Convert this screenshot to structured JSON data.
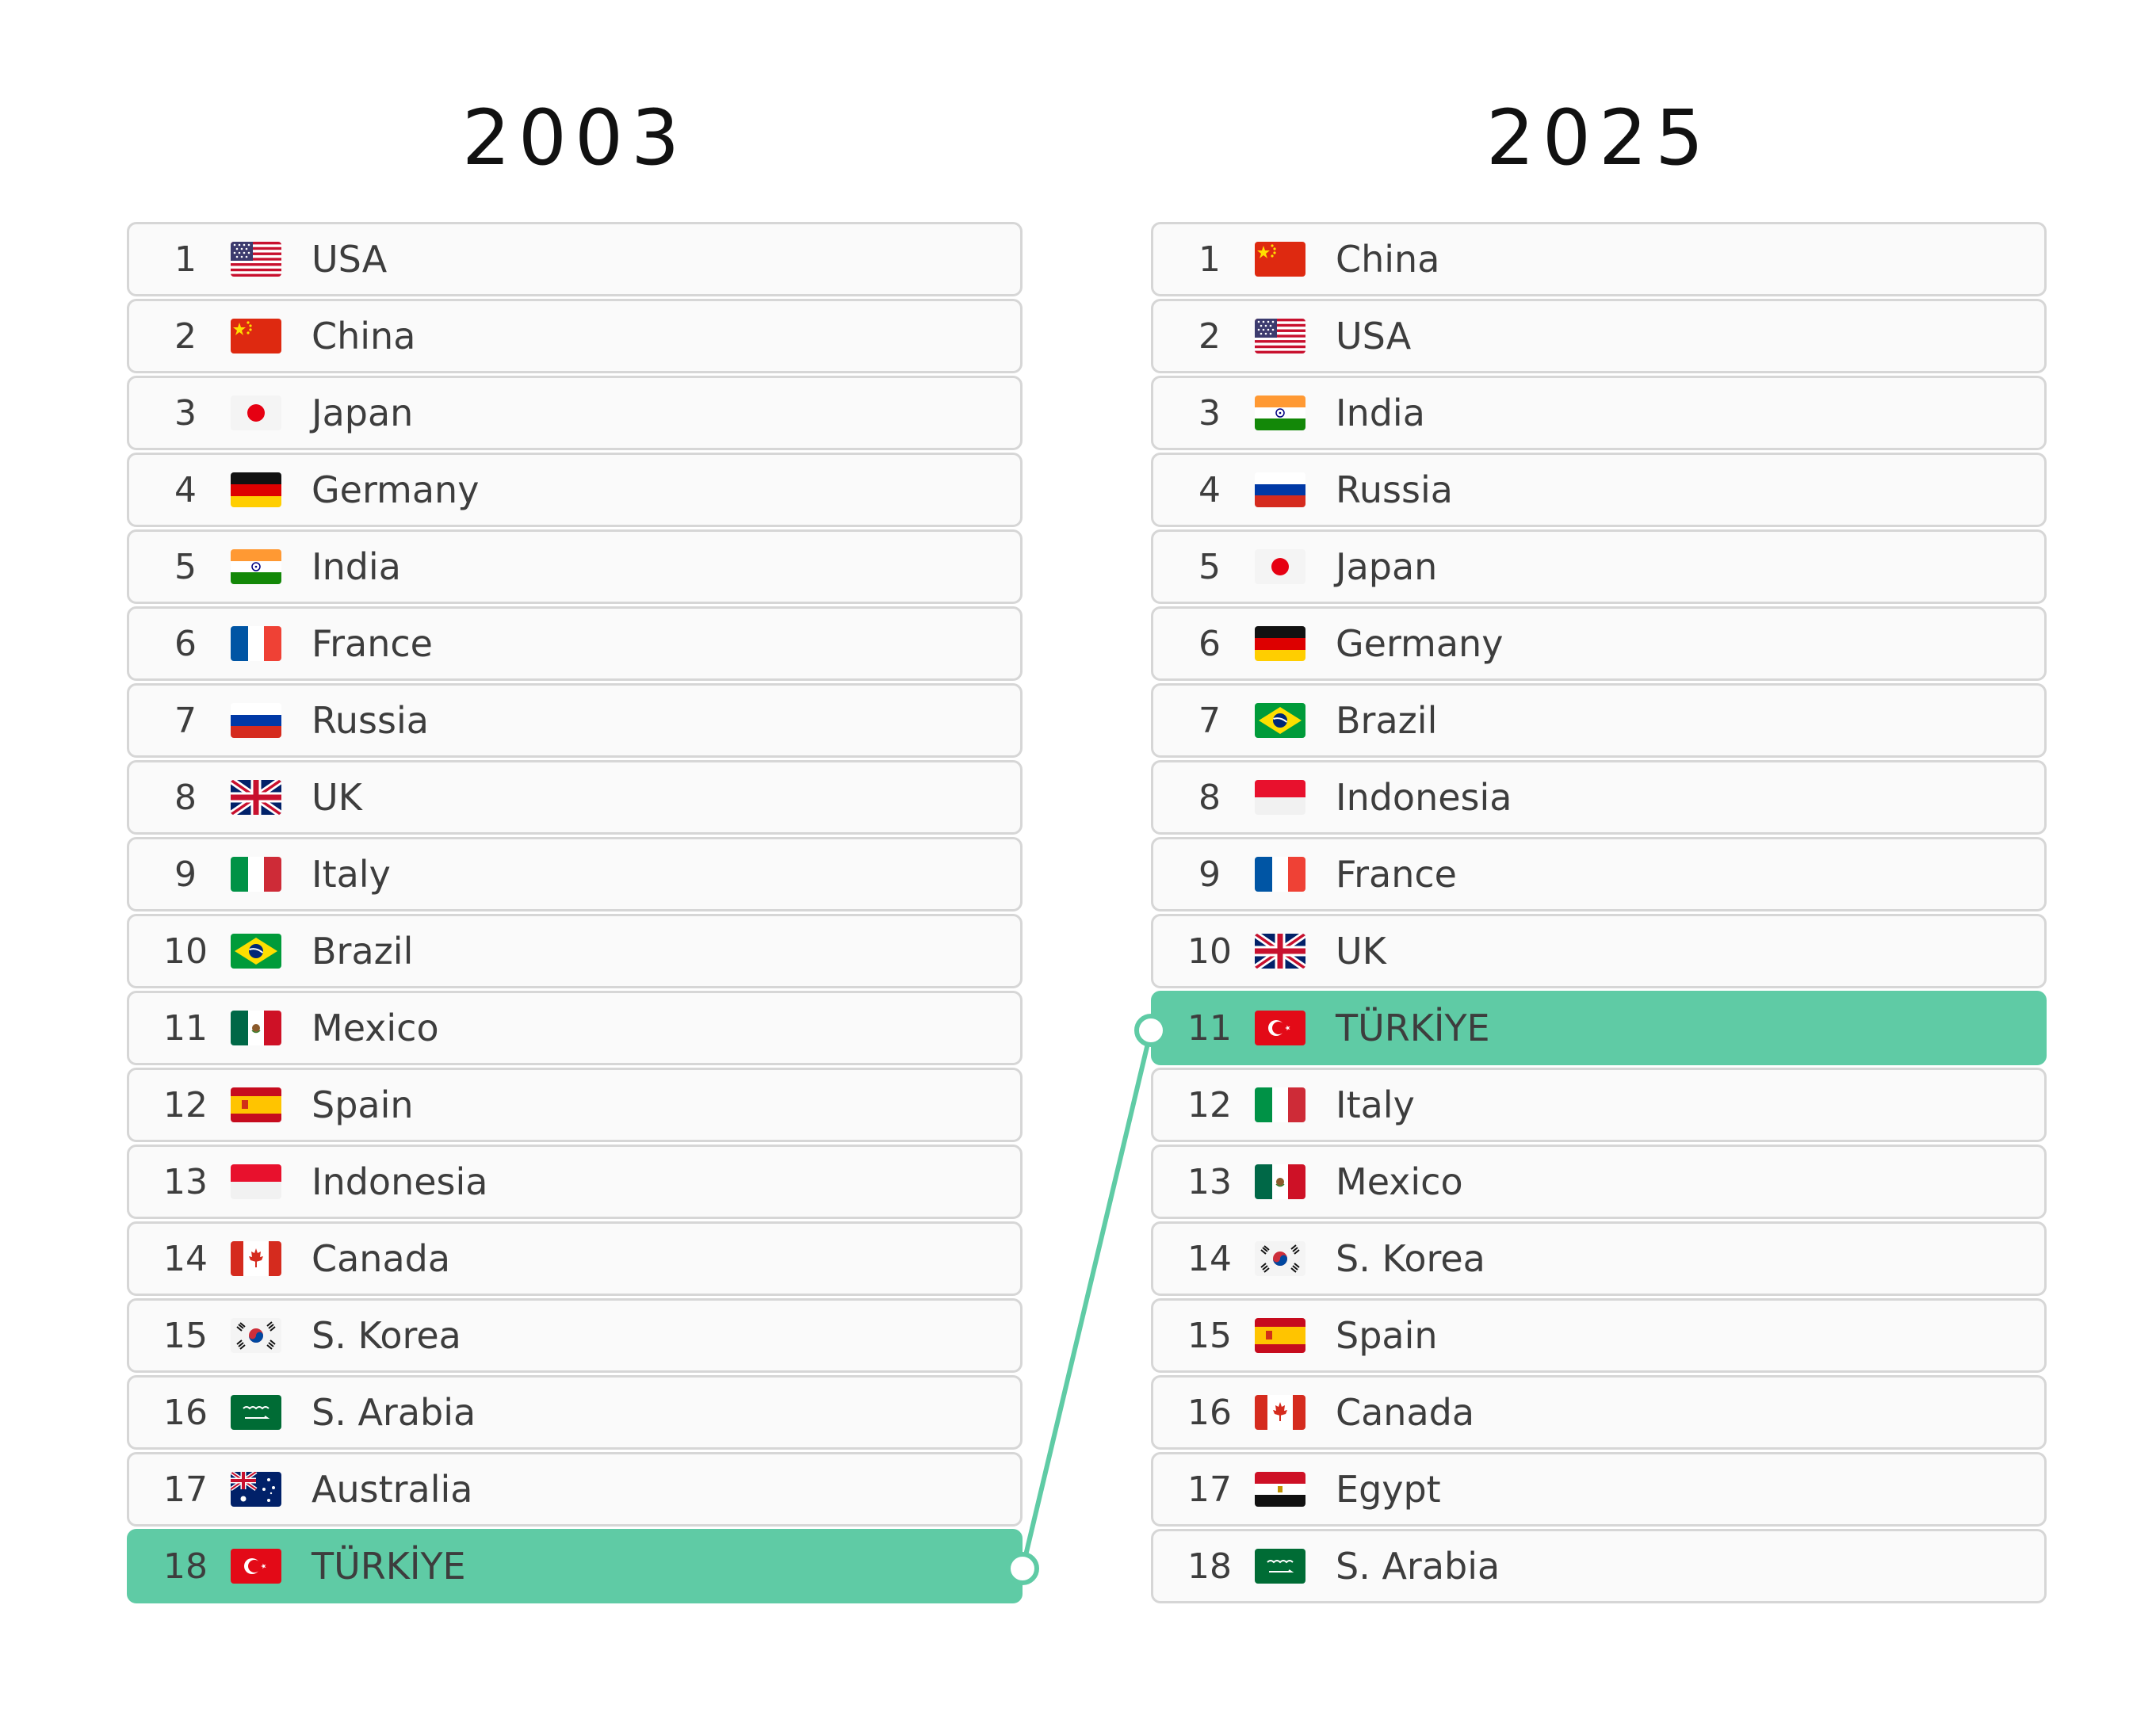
{
  "left": {
    "year": "2003",
    "rows": [
      {
        "rank": "1",
        "name": "USA",
        "flag": "usa-flag-icon"
      },
      {
        "rank": "2",
        "name": "China",
        "flag": "china-flag-icon"
      },
      {
        "rank": "3",
        "name": "Japan",
        "flag": "japan-flag-icon"
      },
      {
        "rank": "4",
        "name": "Germany",
        "flag": "germany-flag-icon"
      },
      {
        "rank": "5",
        "name": "India",
        "flag": "india-flag-icon"
      },
      {
        "rank": "6",
        "name": "France",
        "flag": "france-flag-icon"
      },
      {
        "rank": "7",
        "name": "Russia",
        "flag": "russia-flag-icon"
      },
      {
        "rank": "8",
        "name": "UK",
        "flag": "uk-flag-icon"
      },
      {
        "rank": "9",
        "name": "Italy",
        "flag": "italy-flag-icon"
      },
      {
        "rank": "10",
        "name": "Brazil",
        "flag": "brazil-flag-icon"
      },
      {
        "rank": "11",
        "name": "Mexico",
        "flag": "mexico-flag-icon"
      },
      {
        "rank": "12",
        "name": "Spain",
        "flag": "spain-flag-icon"
      },
      {
        "rank": "13",
        "name": "Indonesia",
        "flag": "indonesia-flag-icon"
      },
      {
        "rank": "14",
        "name": "Canada",
        "flag": "canada-flag-icon"
      },
      {
        "rank": "15",
        "name": "S. Korea",
        "flag": "south-korea-flag-icon"
      },
      {
        "rank": "16",
        "name": "S. Arabia",
        "flag": "saudi-arabia-flag-icon"
      },
      {
        "rank": "17",
        "name": "Australia",
        "flag": "australia-flag-icon"
      },
      {
        "rank": "18",
        "name": "TÜRKİYE",
        "flag": "turkiye-flag-icon",
        "highlight": true
      }
    ]
  },
  "right": {
    "year": "2025",
    "rows": [
      {
        "rank": "1",
        "name": "China",
        "flag": "china-flag-icon"
      },
      {
        "rank": "2",
        "name": "USA",
        "flag": "usa-flag-icon"
      },
      {
        "rank": "3",
        "name": "India",
        "flag": "india-flag-icon"
      },
      {
        "rank": "4",
        "name": "Russia",
        "flag": "russia-flag-icon"
      },
      {
        "rank": "5",
        "name": "Japan",
        "flag": "japan-flag-icon"
      },
      {
        "rank": "6",
        "name": "Germany",
        "flag": "germany-flag-icon"
      },
      {
        "rank": "7",
        "name": "Brazil",
        "flag": "brazil-flag-icon"
      },
      {
        "rank": "8",
        "name": "Indonesia",
        "flag": "indonesia-flag-icon"
      },
      {
        "rank": "9",
        "name": "France",
        "flag": "france-flag-icon"
      },
      {
        "rank": "10",
        "name": "UK",
        "flag": "uk-flag-icon"
      },
      {
        "rank": "11",
        "name": "TÜRKİYE",
        "flag": "turkiye-flag-icon",
        "highlight": true
      },
      {
        "rank": "12",
        "name": "Italy",
        "flag": "italy-flag-icon"
      },
      {
        "rank": "13",
        "name": "Mexico",
        "flag": "mexico-flag-icon"
      },
      {
        "rank": "14",
        "name": "S. Korea",
        "flag": "south-korea-flag-icon"
      },
      {
        "rank": "15",
        "name": "Spain",
        "flag": "spain-flag-icon"
      },
      {
        "rank": "16",
        "name": "Canada",
        "flag": "canada-flag-icon"
      },
      {
        "rank": "17",
        "name": "Egypt",
        "flag": "egypt-flag-icon"
      },
      {
        "rank": "18",
        "name": "S. Arabia",
        "flag": "saudi-arabia-flag-icon"
      }
    ]
  },
  "colors": {
    "highlight": "#5fcba5",
    "row_background": "#fafafa",
    "row_border": "#d6d6d6",
    "connector": "#5fcba5"
  }
}
